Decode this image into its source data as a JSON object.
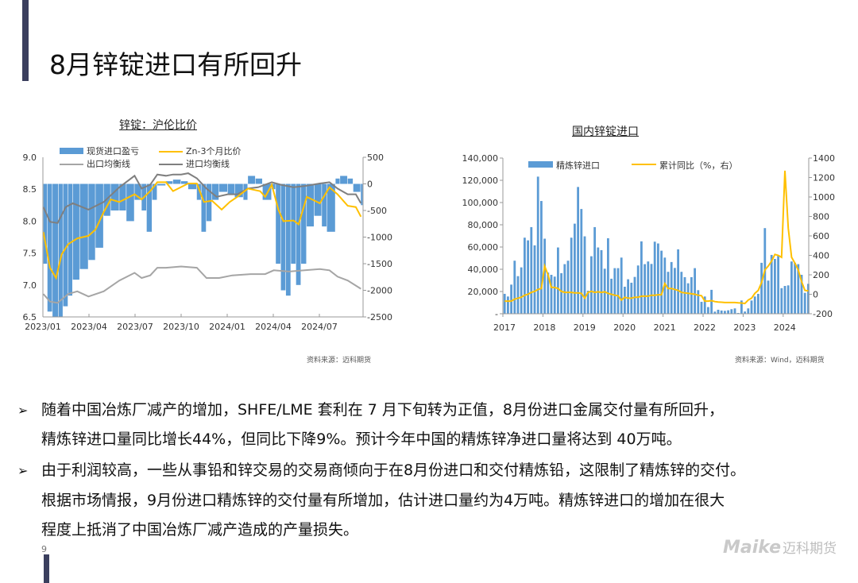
{
  "slide": {
    "title": "8月锌锭进口有所回升",
    "page_number": "9",
    "logo_text": "Maike",
    "logo_cn": "迈科期货",
    "bullets": [
      {
        "lines": [
          "随着中国冶炼厂减产的增加，SHFE/LME 套利在 7 月下旬转为正值，8月份进口金属交付量有所回升，",
          "精炼锌进口量同比增长44%，但同比下降9%。预计今年中国的精炼锌净进口量将达到 40万吨。"
        ]
      },
      {
        "lines": [
          "由于利润较高，一些从事铅和锌交易的交易商倾向于在8月份进口和交付精炼铅，这限制了精炼锌的交付。",
          "根据市场情报，9月份进口精炼锌的交付量有所增加，估计进口量约为4万吨。精炼锌进口的增加在很大",
          "程度上抵消了中国冶炼厂减产造成的产量损失。"
        ]
      }
    ],
    "bullet_marker": "➢"
  },
  "chart_data": [
    {
      "type": "bar+line",
      "title": "锌锭：沪伦比价",
      "source": "资料来源：迈科期货",
      "colors": {
        "bars": "#5b9bd5",
        "ratio": "#ffc000",
        "export": "#a5a5a5",
        "import": "#7f7f7f"
      },
      "legend_placement": "top",
      "y_left": {
        "range": [
          6.5,
          9.0
        ],
        "ticks": [
          "6.5",
          "7.0",
          "7.5",
          "8.0",
          "8.5",
          "9.0"
        ]
      },
      "y_right": {
        "range": [
          -2500,
          500
        ],
        "ticks": [
          "-2500",
          "-2000",
          "-1500",
          "-1000",
          "-500",
          "0",
          "500"
        ]
      },
      "x_ticks": [
        "2023/01",
        "2023/04",
        "2023/07",
        "2023/10",
        "2024/01",
        "2024/04",
        "2024/07"
      ],
      "grid": false,
      "series": [
        {
          "name": "现货进口盈亏",
          "axis": "right",
          "kind": "bar",
          "points": [
            [
              "2023-01-02",
              -1500
            ],
            [
              "2023-01-10",
              -2400
            ],
            [
              "2023-01-20",
              -2500
            ],
            [
              "2023-02-01",
              -2500
            ],
            [
              "2023-02-10",
              -2300
            ],
            [
              "2023-02-20",
              -2100
            ],
            [
              "2023-03-01",
              -1800
            ],
            [
              "2023-03-15",
              -1600
            ],
            [
              "2023-04-01",
              -1430
            ],
            [
              "2023-04-15",
              -1200
            ],
            [
              "2023-05-01",
              -600
            ],
            [
              "2023-05-15",
              -500
            ],
            [
              "2023-06-01",
              -500
            ],
            [
              "2023-06-15",
              -700
            ],
            [
              "2023-07-01",
              -300
            ],
            [
              "2023-07-15",
              -500
            ],
            [
              "2023-07-25",
              -900
            ],
            [
              "2023-08-05",
              -300
            ],
            [
              "2023-08-15",
              -30
            ],
            [
              "2023-09-01",
              50
            ],
            [
              "2023-09-15",
              80
            ],
            [
              "2023-10-01",
              50
            ],
            [
              "2023-10-15",
              -100
            ],
            [
              "2023-11-01",
              -300
            ],
            [
              "2023-11-10",
              -900
            ],
            [
              "2023-11-20",
              -700
            ],
            [
              "2023-12-01",
              -300
            ],
            [
              "2023-12-15",
              -150
            ],
            [
              "2024-01-01",
              -200
            ],
            [
              "2024-01-15",
              -250
            ],
            [
              "2024-02-01",
              -300
            ],
            [
              "2024-02-10",
              150
            ],
            [
              "2024-02-25",
              100
            ],
            [
              "2024-03-10",
              -300
            ],
            [
              "2024-03-28",
              -100
            ],
            [
              "2024-04-05",
              -1500
            ],
            [
              "2024-04-15",
              -2000
            ],
            [
              "2024-04-25",
              -2100
            ],
            [
              "2024-05-05",
              -1500
            ],
            [
              "2024-05-15",
              -1900
            ],
            [
              "2024-05-25",
              -1500
            ],
            [
              "2024-06-05",
              -800
            ],
            [
              "2024-06-20",
              -600
            ],
            [
              "2024-07-05",
              -800
            ],
            [
              "2024-07-15",
              -900
            ],
            [
              "2024-08-01",
              100
            ],
            [
              "2024-08-10",
              150
            ],
            [
              "2024-08-25",
              100
            ],
            [
              "2024-09-05",
              -150
            ],
            [
              "2024-09-20",
              -400
            ]
          ]
        },
        {
          "name": "Zn-3个月比价",
          "axis": "left",
          "kind": "line",
          "points": [
            [
              "2023-01-02",
              7.83
            ],
            [
              "2023-01-15",
              7.27
            ],
            [
              "2023-01-27",
              7.11
            ],
            [
              "2023-02-07",
              7.48
            ],
            [
              "2023-02-20",
              7.64
            ],
            [
              "2023-03-10",
              7.73
            ],
            [
              "2023-04-01",
              7.77
            ],
            [
              "2023-04-15",
              7.87
            ],
            [
              "2023-05-01",
              8.14
            ],
            [
              "2023-05-15",
              8.34
            ],
            [
              "2023-06-01",
              8.3
            ],
            [
              "2023-07-01",
              8.42
            ],
            [
              "2023-07-15",
              8.34
            ],
            [
              "2023-08-01",
              8.47
            ],
            [
              "2023-08-15",
              8.61
            ],
            [
              "2023-09-01",
              8.61
            ],
            [
              "2023-09-15",
              8.47
            ],
            [
              "2023-10-15",
              8.59
            ],
            [
              "2023-11-01",
              8.59
            ],
            [
              "2023-11-15",
              8.3
            ],
            [
              "2023-12-01",
              8.32
            ],
            [
              "2023-12-20",
              8.18
            ],
            [
              "2024-01-05",
              8.3
            ],
            [
              "2024-01-20",
              8.38
            ],
            [
              "2024-02-10",
              8.51
            ],
            [
              "2024-03-05",
              8.47
            ],
            [
              "2024-03-15",
              8.38
            ],
            [
              "2024-03-28",
              8.57
            ],
            [
              "2024-04-10",
              8.18
            ],
            [
              "2024-04-20",
              8.0
            ],
            [
              "2024-05-10",
              8.01
            ],
            [
              "2024-05-20",
              7.95
            ],
            [
              "2024-06-05",
              8.38
            ],
            [
              "2024-07-01",
              8.28
            ],
            [
              "2024-07-20",
              8.53
            ],
            [
              "2024-08-05",
              8.42
            ],
            [
              "2024-08-25",
              8.24
            ],
            [
              "2024-09-10",
              8.22
            ],
            [
              "2024-09-20",
              8.07
            ]
          ]
        },
        {
          "name": "出口均衡线",
          "axis": "left",
          "kind": "line",
          "points": [
            [
              "2023-01-02",
              6.86
            ],
            [
              "2023-01-15",
              6.74
            ],
            [
              "2023-01-30",
              6.72
            ],
            [
              "2023-02-20",
              6.86
            ],
            [
              "2023-03-10",
              6.9
            ],
            [
              "2023-04-01",
              6.82
            ],
            [
              "2023-05-01",
              6.9
            ],
            [
              "2023-06-01",
              7.07
            ],
            [
              "2023-07-01",
              7.19
            ],
            [
              "2023-07-15",
              7.11
            ],
            [
              "2023-08-01",
              7.15
            ],
            [
              "2023-08-15",
              7.27
            ],
            [
              "2023-09-01",
              7.27
            ],
            [
              "2023-10-01",
              7.29
            ],
            [
              "2023-11-01",
              7.27
            ],
            [
              "2023-11-20",
              7.11
            ],
            [
              "2023-12-15",
              7.11
            ],
            [
              "2024-01-10",
              7.15
            ],
            [
              "2024-02-15",
              7.17
            ],
            [
              "2024-03-15",
              7.17
            ],
            [
              "2024-04-01",
              7.23
            ],
            [
              "2024-05-01",
              7.21
            ],
            [
              "2024-06-01",
              7.23
            ],
            [
              "2024-07-01",
              7.25
            ],
            [
              "2024-07-20",
              7.23
            ],
            [
              "2024-08-05",
              7.13
            ],
            [
              "2024-08-25",
              7.07
            ],
            [
              "2024-09-20",
              6.94
            ]
          ]
        },
        {
          "name": "进口均衡线",
          "axis": "left",
          "kind": "line",
          "points": [
            [
              "2023-01-02",
              8.22
            ],
            [
              "2023-01-15",
              7.99
            ],
            [
              "2023-01-30",
              7.97
            ],
            [
              "2023-02-15",
              8.22
            ],
            [
              "2023-03-01",
              8.28
            ],
            [
              "2023-04-01",
              8.18
            ],
            [
              "2023-05-01",
              8.3
            ],
            [
              "2023-06-01",
              8.53
            ],
            [
              "2023-07-01",
              8.71
            ],
            [
              "2023-07-15",
              8.51
            ],
            [
              "2023-08-01",
              8.57
            ],
            [
              "2023-08-15",
              8.73
            ],
            [
              "2023-09-01",
              8.71
            ],
            [
              "2023-09-15",
              8.73
            ],
            [
              "2023-10-01",
              8.73
            ],
            [
              "2023-10-15",
              8.75
            ],
            [
              "2023-11-01",
              8.67
            ],
            [
              "2023-11-20",
              8.51
            ],
            [
              "2023-12-10",
              8.38
            ],
            [
              "2024-01-01",
              8.42
            ],
            [
              "2024-01-20",
              8.42
            ],
            [
              "2024-02-10",
              8.51
            ],
            [
              "2024-03-01",
              8.53
            ],
            [
              "2024-03-28",
              8.61
            ],
            [
              "2024-04-15",
              8.57
            ],
            [
              "2024-05-10",
              8.53
            ],
            [
              "2024-06-01",
              8.55
            ],
            [
              "2024-07-01",
              8.59
            ],
            [
              "2024-07-20",
              8.61
            ],
            [
              "2024-08-05",
              8.51
            ],
            [
              "2024-08-25",
              8.42
            ],
            [
              "2024-09-10",
              8.42
            ],
            [
              "2024-09-20",
              8.28
            ]
          ]
        }
      ]
    },
    {
      "type": "bar+line",
      "title": "国内锌锭进口",
      "source": "资料来源：Wind，迈科期货",
      "colors": {
        "bars": "#5b9bd5",
        "line": "#ffc000"
      },
      "legend_placement": "top",
      "x_start": "2017-01",
      "frequency": "monthly",
      "x_ticks": [
        "2017",
        "2018",
        "2019",
        "2020",
        "2021",
        "2022",
        "2023",
        "2024"
      ],
      "y_left": {
        "range": [
          0,
          140000
        ],
        "ticks": [
          "-",
          "20,000",
          "40,000",
          "60,000",
          "80,000",
          "100,000",
          "120,000",
          "140,000"
        ]
      },
      "y_right": {
        "range": [
          -200,
          1400
        ],
        "ticks": [
          "-200",
          "0",
          "200",
          "400",
          "600",
          "800",
          "1000",
          "1200",
          "1400"
        ]
      },
      "grid": false,
      "series": [
        {
          "name": "精炼锌进口",
          "axis": "left",
          "kind": "bar",
          "values": [
            17900,
            15500,
            26200,
            47700,
            33800,
            41700,
            68400,
            66000,
            77900,
            61500,
            123300,
            101400,
            67500,
            37000,
            35000,
            33400,
            59600,
            36500,
            44600,
            47700,
            68400,
            81000,
            114000,
            94200,
            69600,
            20700,
            51700,
            77900,
            59600,
            57200,
            40500,
            67900,
            31500,
            41000,
            41000,
            50500,
            24300,
            31000,
            27900,
            33100,
            43400,
            65100,
            44600,
            47000,
            44800,
            64800,
            63200,
            56700,
            50500,
            37700,
            46500,
            41200,
            57900,
            37700,
            32900,
            27400,
            32900,
            41000,
            21200,
            10700,
            15500,
            6000,
            21500,
            1900,
            3600,
            2900,
            2600,
            3100,
            4100,
            4800,
            700,
            11900,
            2000,
            4800,
            11900,
            15500,
            17900,
            45800,
            77000,
            29800,
            52900,
            49300,
            52000,
            23000,
            25000,
            25500,
            47000,
            45800,
            44600,
            35000,
            18800,
            26900
          ]
        },
        {
          "name": "累计同比（%，右）",
          "axis": "right",
          "kind": "line",
          "values": [
            -70,
            -70,
            -70,
            -50,
            -40,
            -30,
            -10,
            0,
            20,
            30,
            50,
            60,
            290,
            200,
            70,
            70,
            60,
            30,
            20,
            20,
            20,
            15,
            15,
            10,
            -40,
            20,
            30,
            20,
            25,
            20,
            25,
            10,
            0,
            -10,
            -15,
            -60,
            -30,
            -40,
            -40,
            -30,
            -30,
            -20,
            -20,
            -20,
            -10,
            -10,
            -5,
            -5,
            110,
            60,
            60,
            50,
            40,
            20,
            15,
            10,
            5,
            0,
            -10,
            -15,
            -70,
            -70,
            -65,
            -75,
            -80,
            -82,
            -85,
            -85,
            -85,
            -85,
            -88,
            -90,
            -95,
            -60,
            -40,
            10,
            40,
            120,
            250,
            290,
            340,
            410,
            400,
            380,
            1270,
            680,
            380,
            320,
            250,
            130,
            40,
            35
          ]
        }
      ]
    }
  ]
}
